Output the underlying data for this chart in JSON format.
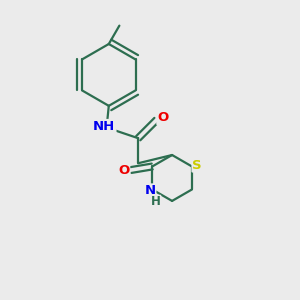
{
  "background_color": "#ebebeb",
  "bond_color": "#2d6e50",
  "atom_colors": {
    "N": "#0000ee",
    "O": "#ee0000",
    "S": "#cccc00",
    "C": "#2d6e50",
    "H": "#2d6e50"
  },
  "figsize": [
    3.0,
    3.0
  ],
  "dpi": 100,
  "lw": 1.6,
  "fontsize": 9.5
}
